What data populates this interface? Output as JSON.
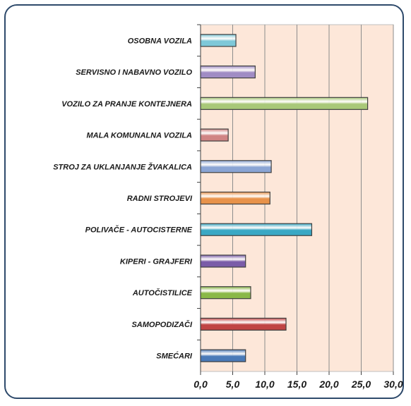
{
  "chart_data": {
    "type": "bar",
    "orientation": "horizontal",
    "categories": [
      "OSOBNA VOZILA",
      "SERVISNO I NABAVNO VOZILO",
      "VOZILO ZA PRANJE KONTEJNERA",
      "MALA KOMUNALNA VOZILA",
      "STROJ ZA UKLANJANJE ŽVAKALICA",
      "RADNI STROJEVI",
      "POLIVAČE - AUTOCISTERNE",
      "KIPERI - GRAJFERI",
      "AUTOČISTILICE",
      "SAMOPODIZAČI",
      "SMEĆARI"
    ],
    "values": [
      5.5,
      8.5,
      26.0,
      4.3,
      11.0,
      10.8,
      17.3,
      7.0,
      7.8,
      13.3,
      7.0
    ],
    "colors": [
      "#7ec8d8",
      "#a08cc4",
      "#a8c878",
      "#d08484",
      "#8aa4d4",
      "#e8924a",
      "#3aa8c4",
      "#7a5ca8",
      "#8ab848",
      "#c04444",
      "#4a7ab8"
    ],
    "xlim": [
      0,
      30
    ],
    "xticks": [
      "0,0",
      "5,0",
      "10,0",
      "15,0",
      "20,0",
      "25,0",
      "30,0"
    ],
    "title": "",
    "xlabel": "",
    "ylabel": "",
    "grid": true,
    "plot_background": "#fde7d9"
  }
}
